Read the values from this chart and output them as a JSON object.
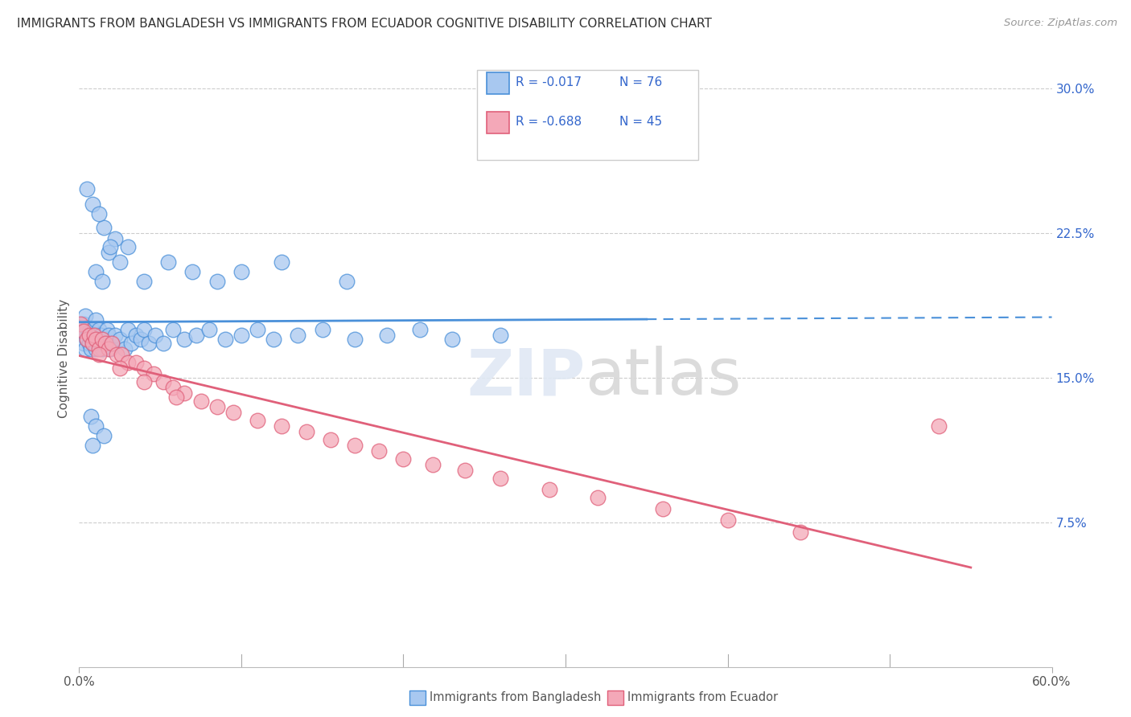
{
  "title": "IMMIGRANTS FROM BANGLADESH VS IMMIGRANTS FROM ECUADOR COGNITIVE DISABILITY CORRELATION CHART",
  "source": "Source: ZipAtlas.com",
  "xlabel_bottom": [
    "Immigrants from Bangladesh",
    "Immigrants from Ecuador"
  ],
  "ylabel": "Cognitive Disability",
  "xlim": [
    0.0,
    0.6
  ],
  "ylim": [
    0.0,
    0.32
  ],
  "xticks": [
    0.0,
    0.6
  ],
  "xticklabels": [
    "0.0%",
    "60.0%"
  ],
  "yticks_right": [
    0.075,
    0.15,
    0.225,
    0.3
  ],
  "ytick_labels_right": [
    "7.5%",
    "15.0%",
    "22.5%",
    "30.0%"
  ],
  "R_bangladesh": -0.017,
  "N_bangladesh": 76,
  "R_ecuador": -0.688,
  "N_ecuador": 45,
  "color_bangladesh": "#a8c8f0",
  "color_ecuador": "#f4a8b8",
  "color_line_bangladesh": "#4a90d9",
  "color_line_ecuador": "#e0607a",
  "background_color": "#ffffff",
  "grid_color": "#cccccc",
  "watermark": "ZIPatlas",
  "bangladesh_points_x": [
    0.001,
    0.002,
    0.003,
    0.003,
    0.004,
    0.004,
    0.005,
    0.005,
    0.006,
    0.006,
    0.007,
    0.007,
    0.008,
    0.008,
    0.009,
    0.01,
    0.01,
    0.011,
    0.012,
    0.012,
    0.013,
    0.014,
    0.015,
    0.016,
    0.017,
    0.018,
    0.019,
    0.02,
    0.022,
    0.025,
    0.028,
    0.03,
    0.032,
    0.035,
    0.038,
    0.04,
    0.043,
    0.047,
    0.052,
    0.058,
    0.065,
    0.072,
    0.08,
    0.09,
    0.1,
    0.11,
    0.12,
    0.135,
    0.15,
    0.17,
    0.19,
    0.21,
    0.23,
    0.26,
    0.015,
    0.022,
    0.03,
    0.005,
    0.008,
    0.012,
    0.018,
    0.025,
    0.01,
    0.014,
    0.019,
    0.04,
    0.055,
    0.07,
    0.085,
    0.1,
    0.125,
    0.165,
    0.007,
    0.01,
    0.015,
    0.008
  ],
  "bangladesh_points_y": [
    0.175,
    0.172,
    0.168,
    0.178,
    0.165,
    0.182,
    0.17,
    0.176,
    0.168,
    0.174,
    0.165,
    0.171,
    0.168,
    0.175,
    0.172,
    0.165,
    0.18,
    0.17,
    0.168,
    0.175,
    0.172,
    0.165,
    0.17,
    0.168,
    0.175,
    0.172,
    0.165,
    0.168,
    0.172,
    0.17,
    0.165,
    0.175,
    0.168,
    0.172,
    0.17,
    0.175,
    0.168,
    0.172,
    0.168,
    0.175,
    0.17,
    0.172,
    0.175,
    0.17,
    0.172,
    0.175,
    0.17,
    0.172,
    0.175,
    0.17,
    0.172,
    0.175,
    0.17,
    0.172,
    0.228,
    0.222,
    0.218,
    0.248,
    0.24,
    0.235,
    0.215,
    0.21,
    0.205,
    0.2,
    0.218,
    0.2,
    0.21,
    0.205,
    0.2,
    0.205,
    0.21,
    0.2,
    0.13,
    0.125,
    0.12,
    0.115
  ],
  "ecuador_points_x": [
    0.001,
    0.003,
    0.005,
    0.006,
    0.008,
    0.009,
    0.01,
    0.012,
    0.014,
    0.016,
    0.018,
    0.02,
    0.023,
    0.026,
    0.03,
    0.035,
    0.04,
    0.046,
    0.052,
    0.058,
    0.065,
    0.075,
    0.085,
    0.095,
    0.11,
    0.125,
    0.14,
    0.155,
    0.17,
    0.185,
    0.2,
    0.218,
    0.238,
    0.26,
    0.29,
    0.32,
    0.36,
    0.4,
    0.445,
    0.012,
    0.025,
    0.04,
    0.06,
    0.53
  ],
  "ecuador_points_y": [
    0.178,
    0.174,
    0.17,
    0.172,
    0.168,
    0.172,
    0.17,
    0.165,
    0.17,
    0.168,
    0.165,
    0.168,
    0.162,
    0.162,
    0.158,
    0.158,
    0.155,
    0.152,
    0.148,
    0.145,
    0.142,
    0.138,
    0.135,
    0.132,
    0.128,
    0.125,
    0.122,
    0.118,
    0.115,
    0.112,
    0.108,
    0.105,
    0.102,
    0.098,
    0.092,
    0.088,
    0.082,
    0.076,
    0.07,
    0.162,
    0.155,
    0.148,
    0.14,
    0.125
  ]
}
